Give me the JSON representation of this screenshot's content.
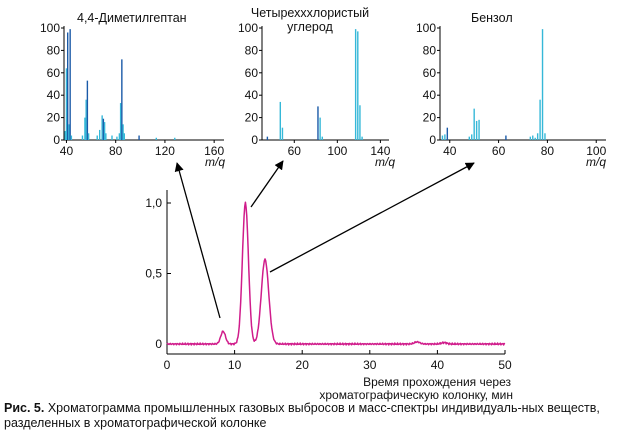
{
  "chart_data": [
    {
      "type": "bar",
      "title": "4,4-Диметилгептан",
      "xlabel": "m/q",
      "xlim": [
        38,
        168
      ],
      "ylim": [
        0,
        100
      ],
      "xticks": [
        40,
        80,
        120,
        160
      ],
      "yticks": [
        0,
        20,
        40,
        60,
        80,
        100
      ],
      "colors": {
        "bars": "#35b8d8",
        "dark": "#1a5aa8"
      },
      "x": [
        39,
        40,
        41,
        42,
        43,
        44,
        53,
        55,
        56,
        57,
        58,
        65,
        67,
        69,
        70,
        71,
        72,
        77,
        81,
        83,
        84,
        85,
        86,
        87,
        99,
        113,
        128
      ],
      "y": [
        8,
        64,
        96,
        14,
        99,
        4,
        4,
        20,
        36,
        53,
        6,
        4,
        9,
        22,
        19,
        16,
        6,
        4,
        3,
        6,
        33,
        72,
        14,
        6,
        4,
        2,
        2
      ],
      "dark_x": [
        41,
        43,
        57,
        70,
        85,
        99
      ]
    },
    {
      "type": "bar",
      "title": "Четырехххлористый углерод",
      "xlabel": "m/q",
      "xlim": [
        30,
        148
      ],
      "ylim": [
        0,
        100
      ],
      "xticks": [
        60,
        100,
        140
      ],
      "yticks": [
        0,
        20,
        40,
        60,
        80,
        100
      ],
      "colors": {
        "bars": "#35b8d8",
        "dark": "#1a5aa8"
      },
      "x": [
        35,
        47,
        49,
        82,
        84,
        86,
        117,
        119,
        121,
        123
      ],
      "y": [
        3,
        34,
        11,
        30,
        20,
        3,
        99,
        97,
        31,
        3
      ],
      "dark_x": [
        35,
        82
      ]
    },
    {
      "type": "bar",
      "title": "Бензол",
      "xlabel": "m/q",
      "xlim": [
        36,
        104
      ],
      "ylim": [
        0,
        100
      ],
      "xticks": [
        40,
        60,
        80,
        100
      ],
      "yticks": [
        0,
        20,
        40,
        60,
        80,
        100
      ],
      "colors": {
        "bars": "#35b8d8",
        "dark": "#1a5aa8"
      },
      "x": [
        37,
        38,
        39,
        48,
        49,
        50,
        51,
        52,
        63,
        73,
        74,
        75,
        76,
        77,
        78,
        79
      ],
      "y": [
        4,
        5,
        11,
        3,
        5,
        28,
        17,
        18,
        4,
        3,
        4,
        2,
        6,
        36,
        99,
        6
      ],
      "dark_x": [
        39,
        63
      ]
    },
    {
      "type": "line",
      "title": "",
      "xlabel": "Время прохождения через хроматографическую колонку, мин",
      "xlim": [
        0,
        50
      ],
      "ylim": [
        -0.05,
        1.05
      ],
      "xticks": [
        0,
        10,
        20,
        30,
        40,
        50
      ],
      "yticks": [
        0,
        0.5,
        1.0
      ],
      "yticklabels": [
        "0",
        "0,5",
        "1,0"
      ],
      "colors": {
        "line": "#d01c8b"
      },
      "baseline": 0,
      "peaks": [
        {
          "x": 8.3,
          "y": 0.09,
          "w": 0.35
        },
        {
          "x": 11.6,
          "y": 1.0,
          "w": 0.45
        },
        {
          "x": 14.5,
          "y": 0.6,
          "w": 0.55
        },
        {
          "x": 37.0,
          "y": 0.015,
          "w": 0.4
        },
        {
          "x": 41.0,
          "y": 0.01,
          "w": 0.4
        }
      ]
    }
  ],
  "caption": {
    "label": "Рис. 5.",
    "text": "Хроматограмма промышленных газовых выбросов и масс-спектры индивидуаль-ных веществ, разделенных в хроматографической колонке"
  }
}
